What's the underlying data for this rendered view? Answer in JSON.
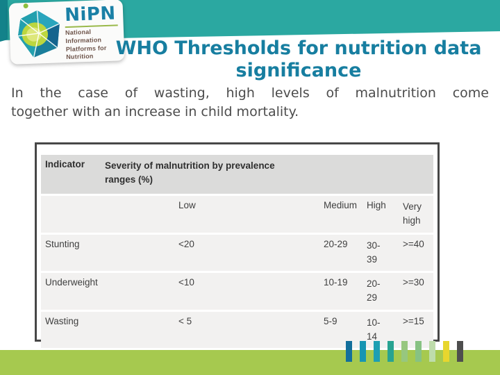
{
  "header": {
    "band_color": "#2ba8a1",
    "logo": {
      "brand": "NiPN",
      "tagline_line1": "National Information",
      "tagline_line2": "Platforms for Nutrition"
    }
  },
  "title": {
    "line1": "WHO Thresholds for nutrition data",
    "line2": "significance",
    "color": "#177ea0"
  },
  "body": {
    "line1": "In the case of wasting, high levels of malnutrition come",
    "line2": "together with an increase in child mortality."
  },
  "table": {
    "header": {
      "indicator": "Indicator",
      "severity": "Severity of malnutrition by prevalence ranges (%)"
    },
    "subheaders": {
      "low": "Low",
      "medium": "Medium",
      "high": "High",
      "very_high": "Very\nhigh"
    },
    "rows": [
      {
        "indicator": "Stunting",
        "low": "<20",
        "medium": "20-29",
        "high": "30-\n39",
        "very_high": ">=40"
      },
      {
        "indicator": "Underweight",
        "low": "<10",
        "medium": "10-19",
        "high": "20-\n29",
        "very_high": ">=30"
      },
      {
        "indicator": "Wasting",
        "low": "< 5",
        "medium": "5-9",
        "high": "10-\n14",
        "very_high": ">=15"
      }
    ]
  },
  "footer": {
    "strip_color": "#a6c94f",
    "bar_colors": [
      "#136f9b",
      "#1795b2",
      "#1d9fb2",
      "#28a391",
      "#97c77f",
      "#87c283",
      "#bedcab",
      "#e7d62e",
      "#4e4e4e"
    ]
  }
}
